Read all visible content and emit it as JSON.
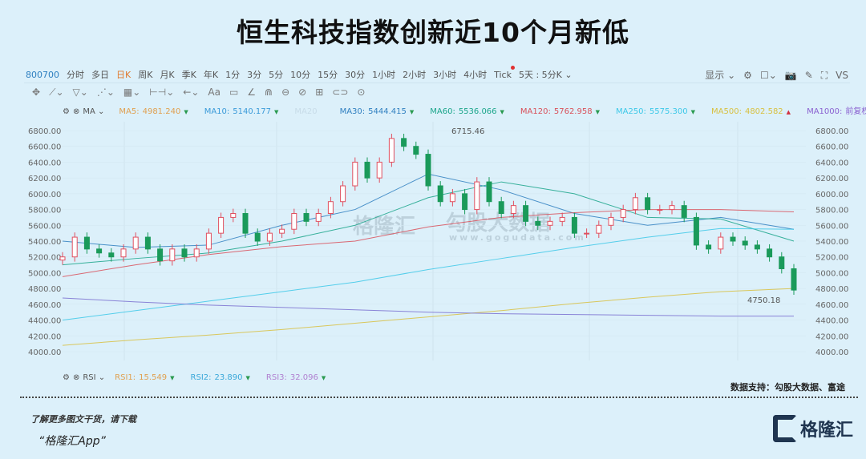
{
  "title": "恒生科技指数创新近10个月新低",
  "toolbar": {
    "code": "800700",
    "periods": [
      "分时",
      "多日",
      "日K",
      "周K",
      "月K",
      "季K",
      "年K",
      "1分",
      "3分",
      "5分",
      "10分",
      "15分",
      "30分",
      "1小时",
      "2小时",
      "3小时",
      "4小时",
      "Tick",
      "5天 : 5分K ⌄"
    ],
    "active_period": "日K",
    "right": [
      "显示 ⌄",
      "⚙",
      "☐⌄",
      "📷",
      "✎",
      "⛶",
      "VS"
    ]
  },
  "draw_tools": [
    "✥",
    "⟋⌄",
    "▽⌄",
    "⋰⌄",
    "▦⌄",
    "⊢⊣⌄",
    "←⌄",
    "Aa",
    "▭",
    "∠",
    "⋒",
    "⊖",
    "⊘",
    "⊞",
    "⊂⊃",
    "⊙"
  ],
  "ma_bar": {
    "indicator": "MA ⌄",
    "items": [
      {
        "label": "MA5:",
        "value": "4981.240",
        "arrow": "▼",
        "color": "#e0a050"
      },
      {
        "label": "MA10:",
        "value": "5140.177",
        "arrow": "▼",
        "color": "#3a9ad9"
      },
      {
        "label": "MA20",
        "value": "",
        "arrow": "",
        "color": "#c8dce8"
      },
      {
        "label": "MA30:",
        "value": "5444.415",
        "arrow": "▼",
        "color": "#2f7fc0"
      },
      {
        "label": "MA60:",
        "value": "5536.066",
        "arrow": "▼",
        "color": "#1aa58a"
      },
      {
        "label": "MA120:",
        "value": "5762.958",
        "arrow": "▼",
        "color": "#d9505a"
      },
      {
        "label": "MA250:",
        "value": "5575.300",
        "arrow": "▼",
        "color": "#3cc8e8"
      },
      {
        "label": "MA500:",
        "value": "4802.582",
        "arrow": "▲",
        "color": "#d8c040"
      },
      {
        "label": "MA1000:",
        "value": "前复权",
        "arrow": "",
        "color": "#8a60d0"
      }
    ]
  },
  "rsi_bar": {
    "indicator": "RSI ⌄",
    "items": [
      {
        "label": "RSI1:",
        "value": "15.549",
        "color": "#e0a050"
      },
      {
        "label": "RSI2:",
        "value": "23.890",
        "color": "#3aa8d9"
      },
      {
        "label": "RSI3:",
        "value": "32.096",
        "color": "#b080d0"
      }
    ]
  },
  "chart_data": {
    "type": "candlestick",
    "ylim": [
      4000,
      6800
    ],
    "yticks": [
      "6800.00",
      "6600.00",
      "6400.00",
      "6200.00",
      "6000.00",
      "5800.00",
      "5600.00",
      "5400.00",
      "5200.00",
      "5000.00",
      "4800.00",
      "4600.00",
      "4400.00",
      "4200.00",
      "4000.00"
    ],
    "high_label": "6715.46",
    "low_label": "4750.18",
    "closes": [
      5200,
      5450,
      5300,
      5250,
      5200,
      5300,
      5450,
      5300,
      5150,
      5300,
      5200,
      5300,
      5500,
      5700,
      5750,
      5500,
      5400,
      5500,
      5550,
      5750,
      5650,
      5750,
      5900,
      6100,
      6400,
      6200,
      6400,
      6700,
      6600,
      6500,
      6100,
      5900,
      6000,
      5800,
      6150,
      5900,
      5750,
      5850,
      5650,
      5600,
      5650,
      5700,
      5500,
      5500,
      5600,
      5700,
      5800,
      5950,
      5800,
      5800,
      5850,
      5700,
      5350,
      5300,
      5450,
      5400,
      5350,
      5300,
      5200,
      5050,
      4780
    ],
    "ma_lines": [
      {
        "name": "MA30",
        "color": "#2f7fc0",
        "values": [
          5400,
          5320,
          5350,
          5600,
          5800,
          6250,
          6050,
          5750,
          5600,
          5700,
          5550
        ]
      },
      {
        "name": "MA60",
        "color": "#1aa58a",
        "values": [
          5100,
          5180,
          5250,
          5400,
          5600,
          5950,
          6150,
          6000,
          5700,
          5680,
          5400
        ]
      },
      {
        "name": "MA120",
        "color": "#d9505a",
        "values": [
          4950,
          5100,
          5230,
          5330,
          5400,
          5580,
          5700,
          5760,
          5800,
          5800,
          5770
        ]
      },
      {
        "name": "MA250",
        "color": "#3cc8e8",
        "values": [
          4400,
          4520,
          4640,
          4760,
          4880,
          5040,
          5180,
          5320,
          5450,
          5560,
          5550
        ]
      },
      {
        "name": "MA500",
        "color": "#d8c040",
        "values": [
          4080,
          4150,
          4210,
          4280,
          4360,
          4440,
          4520,
          4610,
          4690,
          4760,
          4800
        ]
      },
      {
        "name": "MA1000",
        "color": "#7a70d0",
        "values": [
          4680,
          4630,
          4590,
          4560,
          4530,
          4500,
          4480,
          4470,
          4460,
          4450,
          4450
        ]
      }
    ],
    "up_color": "#e05060",
    "down_color": "#1a9a5a"
  },
  "watermarks": {
    "a": "格隆汇",
    "b": "勾股大数据",
    "c": "www.gogudata.com"
  },
  "source": "数据支持：勾股大数据、富途",
  "footer": {
    "line1": "了解更多图文干货，请下载",
    "line2": "“格隆汇App”",
    "logo": "格隆汇"
  }
}
